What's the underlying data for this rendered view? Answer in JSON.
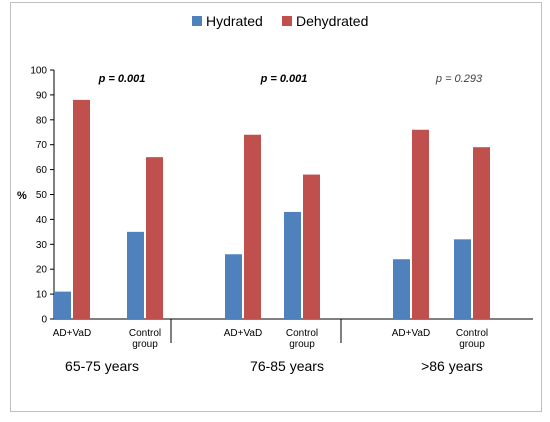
{
  "chart_data": {
    "type": "bar",
    "ylabel": "%",
    "ylim": [
      0,
      100
    ],
    "yticks": [
      0,
      10,
      20,
      30,
      40,
      50,
      60,
      70,
      80,
      90,
      100
    ],
    "series_names": [
      "Hydrated",
      "Dehydrated"
    ],
    "colors": {
      "hydrated": "#4f81bd",
      "dehydrated": "#c0504d"
    },
    "groups": [
      {
        "label": "65-75 years",
        "p_value": "p = 0.001",
        "p_bold": true,
        "bars": [
          {
            "category": "AD+VaD",
            "hydrated": 11,
            "dehydrated": 88
          },
          {
            "category": "Control group",
            "hydrated": 35,
            "dehydrated": 65
          }
        ]
      },
      {
        "label": "76-85 years",
        "p_value": "p = 0.001",
        "p_bold": true,
        "bars": [
          {
            "category": "AD+VaD",
            "hydrated": 26,
            "dehydrated": 74
          },
          {
            "category": "Control group",
            "hydrated": 43,
            "dehydrated": 58
          }
        ]
      },
      {
        "label": ">86 years",
        "p_value": "p = 0.293",
        "p_bold": false,
        "bars": [
          {
            "category": "AD+VaD",
            "hydrated": 24,
            "dehydrated": 76
          },
          {
            "category": "Control group",
            "hydrated": 32,
            "dehydrated": 69
          }
        ]
      }
    ]
  }
}
